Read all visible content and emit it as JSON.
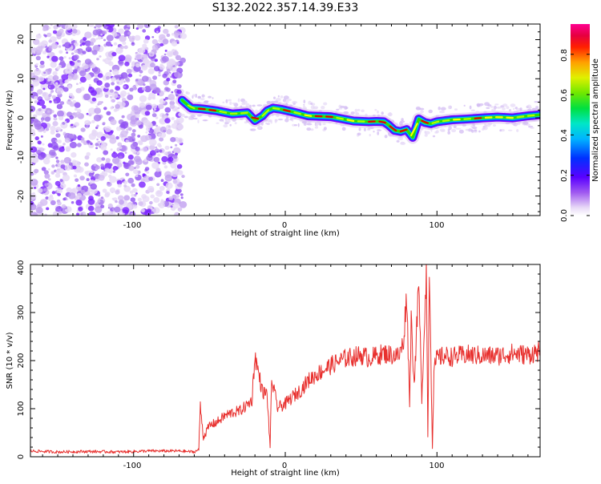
{
  "title": "S132.2022.357.14.39.E33",
  "colors": {
    "snr_line": "#e8302e",
    "colormap": [
      "#ffffff",
      "#d9c2f0",
      "#9a5ef0",
      "#7a00ff",
      "#2a1cff",
      "#0050ff",
      "#00c8ff",
      "#00e890",
      "#30e000",
      "#b0ff00",
      "#ffff00",
      "#ffb000",
      "#ff4000",
      "#e60000",
      "#ff0090"
    ]
  },
  "chart_data": [
    {
      "type": "heatmap",
      "title": "S132.2022.357.14.39.E33",
      "xlabel": "Height of straight line (km)",
      "ylabel": "Frequency (Hz)",
      "xlim": [
        -168,
        168
      ],
      "ylim": [
        -25,
        24
      ],
      "xticks": [
        -100,
        0,
        100
      ],
      "xtick_labels": [
        "-100",
        "0",
        "100"
      ],
      "yticks": [
        -20,
        -10,
        0,
        10,
        20
      ],
      "ytick_labels": [
        "-20",
        "-10",
        "0",
        "10",
        "20"
      ],
      "noise_region_x": [
        -168,
        -67
      ],
      "ridge": {
        "x": [
          -68,
          -62,
          -55,
          -45,
          -35,
          -25,
          -20,
          -15,
          -12,
          -8,
          -3,
          5,
          15,
          30,
          45,
          55,
          60,
          65,
          68,
          72,
          76,
          80,
          84,
          88,
          92,
          96,
          100,
          110,
          120,
          130,
          140,
          150,
          160,
          168
        ],
        "freq": [
          4.5,
          2.5,
          2.3,
          1.8,
          1.0,
          1.3,
          -0.7,
          0.5,
          1.8,
          2.5,
          2.2,
          1.5,
          0.5,
          0.3,
          -0.8,
          -1.0,
          -0.9,
          -1.0,
          -1.8,
          -3.2,
          -3.5,
          -3.0,
          -5.0,
          -0.3,
          -1.2,
          -1.5,
          -1.0,
          -0.5,
          -0.3,
          0.0,
          0.2,
          0.0,
          0.5,
          0.8
        ]
      },
      "colorbar": {
        "label": "Normalized spectral amplitude",
        "range": [
          0.0,
          0.95
        ],
        "ticks": [
          0.0,
          0.2,
          0.4,
          0.6,
          0.8
        ],
        "tick_labels": [
          "0.0",
          "0.2",
          "0.4",
          "0.6",
          "0.8"
        ]
      }
    },
    {
      "type": "line",
      "xlabel": "Height of straight line (km)",
      "ylabel": "SNR (10 * v/v)",
      "xlim": [
        -168,
        168
      ],
      "ylim": [
        0,
        400
      ],
      "xticks": [
        -100,
        0,
        100
      ],
      "xtick_labels": [
        "-100",
        "0",
        "100"
      ],
      "yticks": [
        0,
        100,
        200,
        300,
        400
      ],
      "ytick_labels": [
        "0",
        "100",
        "200",
        "300",
        "400"
      ],
      "series": [
        {
          "x": [
            -168,
            -150,
            -130,
            -110,
            -90,
            -70,
            -60,
            -57,
            -56,
            -54,
            -50,
            -45,
            -40,
            -35,
            -30,
            -25,
            -22,
            -20,
            -15,
            -12,
            -10,
            -9,
            -5,
            0,
            5,
            10,
            15,
            20,
            25,
            30,
            35,
            40,
            45,
            50,
            55,
            60,
            65,
            70,
            75,
            78,
            80,
            82,
            83,
            85,
            88,
            90,
            93,
            94,
            95,
            97,
            98,
            100,
            105,
            110,
            120,
            130,
            140,
            150,
            160,
            168
          ],
          "values": [
            12,
            10,
            11,
            10,
            12,
            12,
            10,
            15,
            108,
            40,
            65,
            72,
            85,
            92,
            95,
            108,
            118,
            210,
            135,
            130,
            20,
            160,
            102,
            110,
            125,
            138,
            158,
            170,
            180,
            190,
            198,
            205,
            208,
            212,
            205,
            210,
            215,
            212,
            210,
            240,
            340,
            110,
            290,
            150,
            360,
            120,
            390,
            40,
            400,
            18,
            180,
            205,
            210,
            208,
            212,
            210,
            210,
            215,
            212,
            220
          ]
        }
      ]
    }
  ]
}
